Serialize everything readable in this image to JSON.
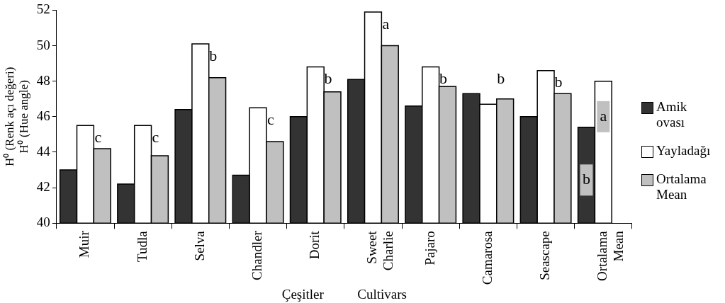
{
  "chart_data": {
    "type": "bar",
    "ylabel": "H⁰ (Renk açı değeri)\nH⁰ (Hue angle)",
    "xlabel": "Çeşitler          Cultivars",
    "categories": [
      "Muir",
      "Tudla",
      "Selva",
      "Chandler",
      "Dorit",
      "Sweet\nCharlie",
      "Pajaro",
      "Camarosa",
      "Seascape",
      "Ortalama\nMean"
    ],
    "series": [
      {
        "name": "Amik\novası",
        "color": "#333333",
        "values": [
          43.0,
          42.2,
          46.4,
          42.7,
          46.0,
          48.1,
          46.6,
          47.3,
          46.0,
          45.4
        ]
      },
      {
        "name": "Yayladağı",
        "color": "#ffffff",
        "values": [
          45.5,
          45.5,
          50.1,
          46.5,
          48.8,
          51.9,
          48.8,
          46.7,
          48.6,
          48.0
        ]
      },
      {
        "name": "Ortalama\nMean",
        "color": "#c0c0c0",
        "values": [
          44.2,
          43.8,
          48.2,
          44.6,
          47.4,
          50.0,
          47.7,
          47.0,
          47.3,
          null
        ]
      }
    ],
    "ylim": [
      40,
      52
    ],
    "yticks": [
      40,
      42,
      44,
      46,
      48,
      50,
      52
    ],
    "grid": false,
    "legend": "right",
    "annotations": [
      "c",
      "c",
      "b",
      "c",
      "b",
      "a",
      "b",
      "b",
      "b",
      "b",
      "a"
    ]
  }
}
